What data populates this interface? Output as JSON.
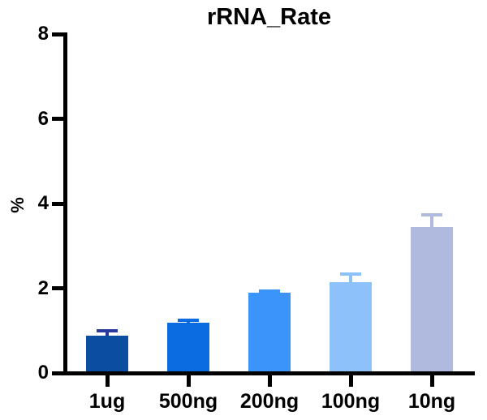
{
  "chart_data": {
    "type": "bar",
    "title": "rRNA_Rate",
    "xlabel": "",
    "ylabel": "%",
    "categories": [
      "1ug",
      "500ng",
      "200ng",
      "100ng",
      "10ng"
    ],
    "values": [
      0.85,
      1.15,
      1.85,
      2.1,
      3.4
    ],
    "errors_plus": [
      0.1,
      0.05,
      0.05,
      0.2,
      0.3
    ],
    "bar_colors": [
      "#0b4da1",
      "#0a6ce0",
      "#3b94f9",
      "#8dc1fa",
      "#afbade"
    ],
    "error_colors": [
      "#2a3a9c",
      "#0a6ce0",
      "#3b94f9",
      "#8dc1fa",
      "#afbade"
    ],
    "ylim": [
      0,
      8
    ],
    "yticks": [
      0,
      2,
      4,
      6,
      8
    ],
    "grid": false,
    "legend": false,
    "axis_color": "#000000",
    "text_color": "#000000",
    "background_color": "#ffffff"
  }
}
